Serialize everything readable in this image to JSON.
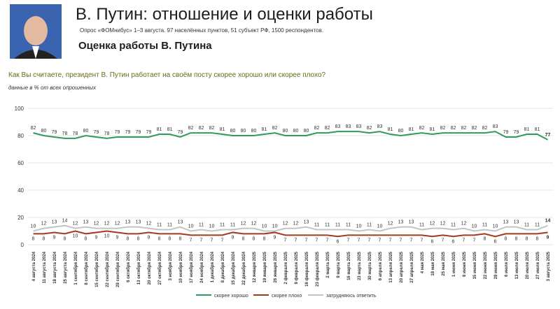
{
  "header": {
    "title": "В. Путин: отношение и оценки работы",
    "subtitle": "Опрос «ФОМнибус» 1–3 августа. 97 населённых пунктов, 51 субъект РФ, 1500 респондентов.",
    "section": "Оценка работы В. Путина"
  },
  "chart_data": {
    "type": "line",
    "title": "Как Вы считаете, президент В. Путин работает на своём посту скорее хорошо или скорее плохо?",
    "subtitle": "данные в % от всех опрошенных",
    "categories": [
      "4 августа 2024",
      "11 августа 2024",
      "18 августа 2024",
      "25 августа 2024",
      "1 сентября 2024",
      "8 сентября 2024",
      "15 сентября 2024",
      "22 сентября 2024",
      "29 сентября 2024",
      "6 октября 2024",
      "13 октября 2024",
      "20 октября 2024",
      "27 октября 2024",
      "3 ноября 2024",
      "10 ноября 2024",
      "17 ноября 2024",
      "24 ноября 2024",
      "1 декабря 2024",
      "8 декабря 2024",
      "15 декабря 2024",
      "22 декабря 2024",
      "12 января 2025",
      "19 января 2025",
      "26 января 2025",
      "2 февраля 2025",
      "9 февраля 2025",
      "16 февраля 2025",
      "23 февраля 2025",
      "2 марта 2025",
      "9 марта 2025",
      "16 марта 2025",
      "23 марта 2025",
      "30 марта 2025",
      "6 апреля 2025",
      "13 апреля 2025",
      "20 апреля 2025",
      "27 апреля 2025",
      "4 мая 2025",
      "18 мая 2025",
      "25 мая 2025",
      "1 июня 2025",
      "8 июня 2025",
      "15 июня 2025",
      "22 июня 2025",
      "29 июня 2025",
      "6 июля 2025",
      "13 июля 2025",
      "20 июля 2025",
      "27 июля 2025",
      "3 августа 2025"
    ],
    "series": [
      {
        "name": "скорее хорошо",
        "color": "#2e9a5c",
        "values": [
          82,
          80,
          79,
          78,
          78,
          80,
          79,
          78,
          79,
          79,
          79,
          79,
          81,
          81,
          79,
          82,
          82,
          82,
          81,
          80,
          80,
          80,
          81,
          82,
          80,
          80,
          80,
          82,
          82,
          83,
          83,
          83,
          82,
          83,
          81,
          80,
          81,
          82,
          81,
          82,
          82,
          82,
          82,
          82,
          83,
          79,
          79,
          81,
          81,
          77
        ]
      },
      {
        "name": "скорее плохо",
        "color": "#a33a1e",
        "values": [
          8,
          8,
          9,
          8,
          10,
          8,
          9,
          10,
          9,
          8,
          8,
          9,
          8,
          8,
          8,
          7,
          7,
          7,
          7,
          9,
          8,
          8,
          8,
          9,
          7,
          7,
          7,
          7,
          7,
          6,
          7,
          7,
          7,
          7,
          7,
          7,
          7,
          7,
          6,
          7,
          6,
          7,
          7,
          8,
          6,
          8,
          8,
          8,
          8,
          9
        ]
      },
      {
        "name": "затрудняюсь ответить",
        "color": "#c4c4c4",
        "values": [
          10,
          12,
          13,
          14,
          12,
          13,
          12,
          12,
          12,
          13,
          13,
          12,
          11,
          11,
          13,
          10,
          11,
          10,
          11,
          11,
          12,
          12,
          10,
          10,
          12,
          12,
          13,
          11,
          11,
          11,
          11,
          10,
          11,
          10,
          12,
          13,
          13,
          11,
          12,
          12,
          11,
          12,
          10,
          11,
          10,
          13,
          13,
          11,
          11,
          14
        ]
      }
    ],
    "ylim": [
      0,
      100
    ],
    "yticks": [
      0,
      20,
      40,
      60,
      80,
      100
    ],
    "grid": true,
    "legend": "bottom"
  }
}
